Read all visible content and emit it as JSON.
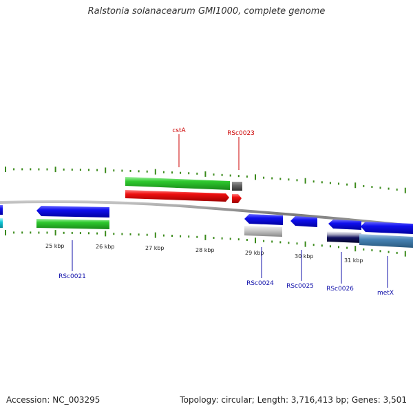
{
  "title": "Ralstonia solanacearum GMI1000, complete genome",
  "footer": {
    "accession": "Accession: NC_003295",
    "summary": "Topology: circular; Length: 3,716,413 bp; Genes: 3,501"
  },
  "colors": {
    "cds": "#0a0ae0",
    "gene": "#2ec82e",
    "rrna_red": "#ee1010",
    "misc_gray": "#bbbbbb",
    "navy": "#101060",
    "steel": "#4682b4",
    "cyan": "#10c8d8",
    "tick": "#3a8a1a",
    "backbone": "#888888",
    "label_red": "#cc0000",
    "label_blue": "#1010aa"
  },
  "scale_labels": [
    "25 kbp",
    "26 kbp",
    "27 kbp",
    "28 kbp",
    "29 kbp",
    "30 kbp",
    "31 kbp"
  ],
  "gene_labels": [
    {
      "text": "cstA",
      "color": "red"
    },
    {
      "text": "RSc0023",
      "color": "red"
    },
    {
      "text": "RSc0021",
      "color": "blue"
    },
    {
      "text": "RSc0024",
      "color": "blue"
    },
    {
      "text": "RSc0025",
      "color": "blue"
    },
    {
      "text": "RSc0026",
      "color": "blue"
    },
    {
      "text": "metX",
      "color": "blue"
    }
  ]
}
